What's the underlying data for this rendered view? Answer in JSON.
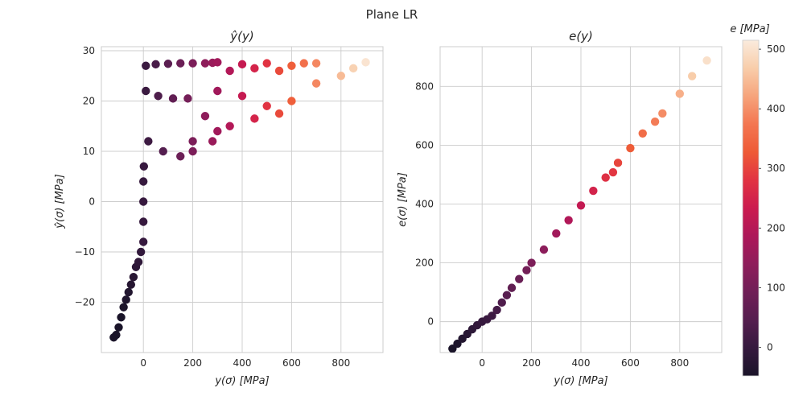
{
  "figure": {
    "suptitle": "Plane LR"
  },
  "chart_data": [
    {
      "type": "scatter",
      "title": "ŷ(y)",
      "xlabel": "y(σ) [MPa]",
      "ylabel": "ŷ(σ) [MPa]",
      "xlim": [
        -170,
        970
      ],
      "ylim": [
        -30,
        30.8
      ],
      "xticks": [
        0,
        200,
        400,
        600,
        800
      ],
      "yticks": [
        -20,
        -10,
        0,
        10,
        20,
        30
      ],
      "xtick_labels": [
        "0",
        "200",
        "400",
        "600",
        "800"
      ],
      "ytick_labels": [
        "−20",
        "−10",
        "0",
        "10",
        "20",
        "30"
      ],
      "grid": true,
      "color_by": "e",
      "series": [
        {
          "description": "compressive tail",
          "points": [
            [
              -120,
              -27
            ],
            [
              -110,
              -26.5
            ],
            [
              -100,
              -25
            ],
            [
              -90,
              -23
            ],
            [
              -80,
              -21
            ],
            [
              -70,
              -19.5
            ],
            [
              -60,
              -18
            ],
            [
              -50,
              -16.5
            ],
            [
              -40,
              -15
            ],
            [
              -30,
              -13
            ],
            [
              -20,
              -12
            ],
            [
              -10,
              -10
            ],
            [
              0,
              -8
            ],
            [
              0,
              -4
            ],
            [
              0,
              0
            ],
            [
              0,
              4
            ],
            [
              2,
              7
            ]
          ]
        },
        {
          "description": "saturated band",
          "points": [
            [
              10,
              27
            ],
            [
              50,
              27.3
            ],
            [
              100,
              27.4
            ],
            [
              150,
              27.5
            ],
            [
              200,
              27.5
            ],
            [
              250,
              27.5
            ],
            [
              280,
              27.6
            ],
            [
              10,
              22
            ],
            [
              60,
              21
            ],
            [
              120,
              20.5
            ],
            [
              180,
              20.5
            ],
            [
              20,
              12
            ],
            [
              80,
              10
            ],
            [
              150,
              9
            ],
            [
              200,
              10
            ]
          ]
        },
        {
          "description": "high-stress streaks",
          "points": [
            [
              300,
              27.7
            ],
            [
              350,
              26
            ],
            [
              400,
              27.3
            ],
            [
              450,
              26.5
            ],
            [
              500,
              27.5
            ],
            [
              550,
              26
            ],
            [
              600,
              27
            ],
            [
              650,
              27.5
            ],
            [
              700,
              27.5
            ],
            [
              800,
              25
            ],
            [
              850,
              26.5
            ],
            [
              900,
              27.7
            ],
            [
              300,
              22
            ],
            [
              400,
              21
            ],
            [
              500,
              19
            ],
            [
              600,
              20
            ],
            [
              700,
              23.5
            ],
            [
              250,
              17
            ],
            [
              350,
              15
            ],
            [
              450,
              16.5
            ],
            [
              550,
              17.5
            ],
            [
              200,
              12
            ],
            [
              300,
              14
            ],
            [
              280,
              12
            ]
          ]
        }
      ]
    },
    {
      "type": "scatter",
      "title": "e(y)",
      "xlabel": "y(σ) [MPa]",
      "ylabel": "e(σ) [MPa]",
      "xlim": [
        -170,
        970
      ],
      "ylim": [
        -105,
        935
      ],
      "xticks": [
        0,
        200,
        400,
        600,
        800
      ],
      "yticks": [
        0,
        200,
        400,
        600,
        800
      ],
      "xtick_labels": [
        "0",
        "200",
        "400",
        "600",
        "800"
      ],
      "ytick_labels": [
        "0",
        "200",
        "400",
        "600",
        "800"
      ],
      "grid": true,
      "color_by": "e",
      "series": [
        {
          "description": "near-linear relation",
          "points": [
            [
              -120,
              -92
            ],
            [
              -100,
              -75
            ],
            [
              -80,
              -58
            ],
            [
              -60,
              -42
            ],
            [
              -40,
              -26
            ],
            [
              -20,
              -12
            ],
            [
              0,
              0
            ],
            [
              20,
              8
            ],
            [
              40,
              20
            ],
            [
              60,
              40
            ],
            [
              80,
              65
            ],
            [
              100,
              90
            ],
            [
              120,
              115
            ],
            [
              150,
              145
            ],
            [
              180,
              175
            ],
            [
              200,
              200
            ],
            [
              250,
              245
            ],
            [
              300,
              300
            ],
            [
              350,
              345
            ],
            [
              400,
              395
            ],
            [
              450,
              445
            ],
            [
              500,
              490
            ],
            [
              530,
              508
            ],
            [
              550,
              540
            ],
            [
              600,
              590
            ],
            [
              650,
              640
            ],
            [
              700,
              680
            ],
            [
              730,
              708
            ],
            [
              800,
              775
            ],
            [
              850,
              835
            ],
            [
              910,
              888
            ]
          ]
        }
      ]
    }
  ],
  "colorbar": {
    "label": "e [MPa]",
    "min": -48,
    "max": 515,
    "ticks": [
      0,
      100,
      200,
      300,
      400,
      500
    ],
    "tick_labels": [
      "0",
      "100",
      "200",
      "300",
      "400",
      "500"
    ],
    "colormap": "rocket",
    "stops": [
      "#1a1429",
      "#35193e",
      "#551e4f",
      "#701f57",
      "#8e1d5b",
      "#ad1759",
      "#cb1b4f",
      "#e13342",
      "#ee5a36",
      "#f37651",
      "#f6a47c",
      "#f8cdaa",
      "#faebdd"
    ]
  }
}
